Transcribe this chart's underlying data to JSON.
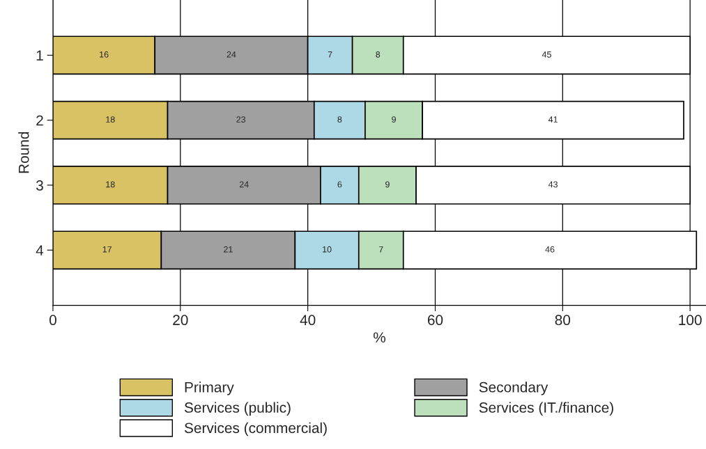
{
  "chart_data": {
    "type": "bar",
    "orientation": "horizontal",
    "stacked": true,
    "xlabel": "%",
    "ylabel": "Round",
    "categories": [
      "1",
      "2",
      "3",
      "4"
    ],
    "series": [
      {
        "name": "Primary",
        "color": "#d9c264",
        "values": [
          16,
          18,
          18,
          17
        ]
      },
      {
        "name": "Secondary",
        "color": "#a0a0a0",
        "values": [
          24,
          23,
          24,
          21
        ]
      },
      {
        "name": "Services (public)",
        "color": "#add8e6",
        "values": [
          7,
          8,
          6,
          10
        ]
      },
      {
        "name": "Services (IT./finance)",
        "color": "#bcdfbc",
        "values": [
          8,
          9,
          9,
          7
        ]
      },
      {
        "name": "Services (commercial)",
        "color": "#ffffff",
        "values": [
          45,
          41,
          43,
          46
        ]
      }
    ],
    "xlim": [
      0,
      102.5
    ],
    "xticks": [
      0,
      20,
      40,
      60,
      80,
      100
    ],
    "grid": "x",
    "legend": "bottom",
    "data_labels": true
  }
}
